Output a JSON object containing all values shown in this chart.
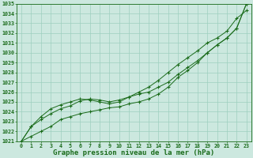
{
  "title": "Graphe pression niveau de la mer (hPa)",
  "x_values": [
    0,
    1,
    2,
    3,
    4,
    5,
    6,
    7,
    8,
    9,
    10,
    11,
    12,
    13,
    14,
    15,
    16,
    17,
    18,
    19,
    20,
    21,
    22,
    23
  ],
  "series1_bottom": [
    1021.0,
    1021.5,
    1022.0,
    1022.5,
    1023.2,
    1023.5,
    1023.8,
    1024.0,
    1024.2,
    1024.4,
    1024.5,
    1024.8,
    1025.0,
    1025.3,
    1025.8,
    1026.5,
    1027.5,
    1028.2,
    1029.0,
    1030.0,
    1030.8,
    1031.5,
    1032.5,
    1035.0
  ],
  "series2_mid": [
    1021.0,
    1022.5,
    1023.2,
    1023.8,
    1024.3,
    1024.6,
    1025.1,
    1025.3,
    1025.2,
    1025.0,
    1025.2,
    1025.5,
    1025.8,
    1026.0,
    1026.5,
    1027.0,
    1027.8,
    1028.5,
    1029.2,
    1030.0,
    1030.8,
    1031.5,
    1032.5,
    1035.0
  ],
  "series3_top": [
    1021.0,
    1022.5,
    1023.5,
    1024.3,
    1024.7,
    1025.0,
    1025.3,
    1025.2,
    1025.0,
    1024.8,
    1025.0,
    1025.5,
    1026.0,
    1026.5,
    1027.2,
    1028.0,
    1028.8,
    1029.5,
    1030.2,
    1031.0,
    1031.5,
    1032.2,
    1033.5,
    1034.3
  ],
  "ylim_min": 1021,
  "ylim_max": 1035,
  "xlim_min": 0,
  "xlim_max": 23,
  "yticks": [
    1021,
    1022,
    1023,
    1024,
    1025,
    1026,
    1027,
    1028,
    1029,
    1030,
    1031,
    1032,
    1033,
    1034,
    1035
  ],
  "xticks": [
    0,
    1,
    2,
    3,
    4,
    5,
    6,
    7,
    8,
    9,
    10,
    11,
    12,
    13,
    14,
    15,
    16,
    17,
    18,
    19,
    20,
    21,
    22,
    23
  ],
  "line_color": "#1a6b1a",
  "marker": "+",
  "bg_color": "#cce8df",
  "grid_color": "#9ecfbf",
  "title_color": "#1a6b1a",
  "tick_label_color": "#1a6b1a",
  "title_fontsize": 6.5,
  "tick_fontsize": 4.8,
  "linewidth": 0.7,
  "markersize": 2.8
}
